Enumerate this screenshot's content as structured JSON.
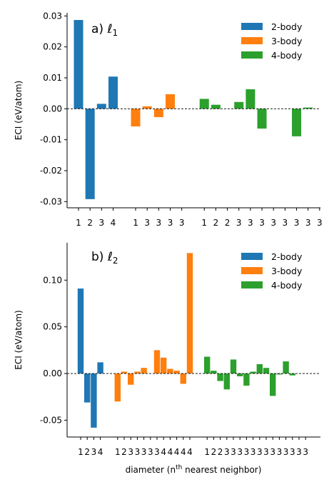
{
  "colors": {
    "two_body": "#1f77b4",
    "three_body": "#ff7f0e",
    "four_body": "#2ca02c"
  },
  "chart_data": [
    {
      "type": "bar",
      "title": "a) ℓ",
      "title_subscript": "1",
      "ylabel": "ECI (eV/atom)",
      "xlabel": "",
      "ylim": [
        -0.032,
        0.031
      ],
      "yticks": [
        -0.03,
        -0.02,
        -0.01,
        0.0,
        0.01,
        0.02,
        0.03
      ],
      "ytick_labels": [
        "-0.03",
        "-0.02",
        "-0.01",
        "0.00",
        "0.01",
        "0.02",
        "0.03"
      ],
      "zero_line": "dashed",
      "legend_position": "top-right",
      "series": [
        {
          "name": "2-body",
          "color": "#1f77b4",
          "categories": [
            "1",
            "2",
            "3",
            "4"
          ],
          "values": [
            0.0287,
            -0.0292,
            0.0016,
            0.0104
          ]
        },
        {
          "name": "3-body",
          "color": "#ff7f0e",
          "categories": [
            "1",
            "3",
            "3",
            "3",
            "3"
          ],
          "values": [
            -0.0057,
            0.0008,
            -0.0027,
            0.0047,
            0.0
          ]
        },
        {
          "name": "4-body",
          "color": "#2ca02c",
          "categories": [
            "1",
            "2",
            "2",
            "3",
            "3",
            "3",
            "3",
            "3",
            "3",
            "3",
            "3"
          ],
          "values": [
            0.0032,
            0.0013,
            0.0,
            0.0022,
            0.0063,
            -0.0064,
            0.0,
            0.0,
            -0.0089,
            0.0004,
            0.0
          ]
        }
      ]
    },
    {
      "type": "bar",
      "title": "b) ℓ",
      "title_subscript": "2",
      "ylabel": "ECI (eV/atom)",
      "xlabel": "diameter (n",
      "xlabel_superscript": "th",
      "xlabel_suffix": " nearest neighbor)",
      "ylim": [
        -0.068,
        0.14
      ],
      "yticks": [
        -0.05,
        0.0,
        0.05,
        0.1
      ],
      "ytick_labels": [
        "-0.05",
        "0.00",
        "0.05",
        "0.10"
      ],
      "zero_line": "dashed",
      "legend_position": "top-right",
      "series": [
        {
          "name": "2-body",
          "color": "#1f77b4",
          "categories": [
            "1",
            "2",
            "3",
            "4"
          ],
          "values": [
            0.091,
            -0.031,
            -0.058,
            0.012
          ]
        },
        {
          "name": "3-body",
          "color": "#ff7f0e",
          "categories": [
            "1",
            "2",
            "3",
            "3",
            "3",
            "3",
            "3",
            "4",
            "4",
            "4",
            "4",
            "4"
          ],
          "values": [
            -0.03,
            0.002,
            -0.012,
            0.002,
            0.006,
            0.0,
            0.025,
            0.017,
            0.005,
            0.003,
            -0.011,
            0.129
          ]
        },
        {
          "name": "4-body",
          "color": "#2ca02c",
          "categories": [
            "1",
            "2",
            "2",
            "3",
            "3",
            "3",
            "3",
            "3",
            "3",
            "3",
            "3",
            "3",
            "3",
            "3",
            "3",
            "3"
          ],
          "values": [
            0.018,
            0.003,
            -0.008,
            -0.017,
            0.015,
            -0.003,
            -0.013,
            0.002,
            0.01,
            0.006,
            -0.024,
            -0.001,
            0.013,
            -0.002,
            0.0,
            0.0
          ]
        }
      ]
    }
  ]
}
